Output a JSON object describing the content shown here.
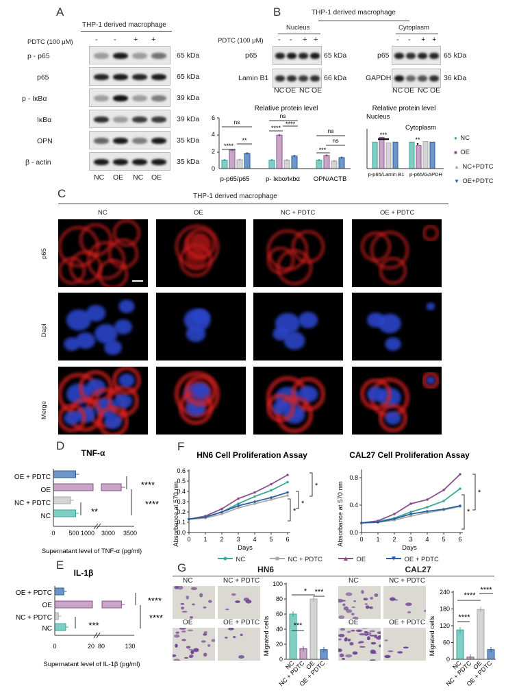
{
  "panelA": {
    "label": "A",
    "title": "THP-1 derived macrophage",
    "pdtc_label": "PDTC (100 μM)",
    "pdtc_values": [
      "-",
      "-",
      "+",
      "+"
    ],
    "rows": [
      {
        "name": "p - p65",
        "kda": "65 kDa",
        "int": [
          0.35,
          0.95,
          0.35,
          0.55
        ]
      },
      {
        "name": "p65",
        "kda": "65 kDa",
        "int": [
          0.9,
          0.95,
          0.9,
          0.95
        ]
      },
      {
        "name": "p - IκBα",
        "kda": "39 kDa",
        "int": [
          0.35,
          1.0,
          0.35,
          0.5
        ]
      },
      {
        "name": "IκBα",
        "kda": "39 kDa",
        "int": [
          0.85,
          0.35,
          0.8,
          0.8
        ]
      },
      {
        "name": "OPN",
        "kda": "35 kDa",
        "int": [
          0.6,
          0.95,
          0.5,
          0.95
        ]
      },
      {
        "name": "β - actin",
        "kda": "35 kDa",
        "int": [
          0.95,
          0.95,
          0.95,
          0.95
        ]
      }
    ],
    "lanes": [
      "NC",
      "OE",
      "NC",
      "OE"
    ]
  },
  "panelB": {
    "label": "B",
    "title": "THP-1 derived macrophage",
    "nucleus": "Nucleus",
    "cytoplasm": "Cytoplasm",
    "pdtc_label": "PDTC (100 μM)",
    "pdtc_values": [
      "-",
      "-",
      "+",
      "+"
    ],
    "nuc_rows": [
      {
        "name": "p65",
        "kda": "65 kDa"
      },
      {
        "name": "Lamin B1",
        "kda": "66 kDa"
      }
    ],
    "cyt_rows": [
      {
        "name": "p65",
        "kda": "65 kDa"
      },
      {
        "name": "GAPDH",
        "kda": "36 kDa"
      }
    ],
    "lanes": [
      "NC",
      "OE",
      "NC",
      "OE"
    ]
  },
  "chart_rel": {
    "type": "bar",
    "title": "Relative protein level",
    "categories": [
      "p-p65/p65",
      "p- Iκbα/Iκbα",
      "OPN/ACTB"
    ],
    "series": [
      {
        "name": "NC",
        "values": [
          1.0,
          1.0,
          1.0
        ]
      },
      {
        "name": "OE",
        "values": [
          2.2,
          3.95,
          1.55
        ]
      },
      {
        "name": "NC+PDTC",
        "values": [
          1.05,
          1.0,
          0.9
        ]
      },
      {
        "name": "OE+PDTC",
        "values": [
          1.8,
          1.5,
          1.3
        ]
      }
    ],
    "ylim": [
      0,
      6
    ],
    "yticks": [
      "0",
      "2",
      "4",
      "6"
    ],
    "annotations": [
      "ns",
      "****",
      "**",
      "ns",
      "****",
      "****",
      "ns",
      "***",
      "ns"
    ]
  },
  "chart_nuc": {
    "type": "bar",
    "title": "Relative protein level",
    "sub_nucleus": "Nucleus",
    "sub_cytoplasm": "Cytoplasm",
    "categories": [
      "p-p65/Lamin B1",
      "p-p65/GAPDH"
    ],
    "series": [
      {
        "name": "NC",
        "values": [
          1.0,
          1.0
        ]
      },
      {
        "name": "OE",
        "values": [
          1.18,
          0.87
        ]
      },
      {
        "name": "NC+PDTC",
        "values": [
          0.97,
          1.02
        ]
      },
      {
        "name": "OE+PDTC",
        "values": [
          1.0,
          1.0
        ]
      }
    ],
    "ylim": [
      0,
      1.5
    ],
    "annotations": [
      "***",
      "**"
    ]
  },
  "legend_top": [
    {
      "name": "NC",
      "color": "#3aa89a",
      "marker": "●"
    },
    {
      "name": "OE",
      "color": "#8a4e8c",
      "marker": "■"
    },
    {
      "name": "NC+PDTC",
      "color": "#a8a8a8",
      "marker": "▲"
    },
    {
      "name": "OE+PDTC",
      "color": "#2a5e9e",
      "marker": "▼"
    }
  ],
  "panelC": {
    "label": "C",
    "title": "THP-1 derived macrophage",
    "cols": [
      "NC",
      "OE",
      "NC + PDTC",
      "OE + PDTC"
    ],
    "rows": [
      "p65",
      "Dapi",
      "Merge"
    ]
  },
  "chart_tnf": {
    "label": "D",
    "type": "bar",
    "title": "TNF-α",
    "categories": [
      "OE + PDTC",
      "OE",
      "NC + PDTC",
      "NC"
    ],
    "values": [
      650,
      3350,
      500,
      650
    ],
    "xticks": [
      "0",
      "500",
      "1000",
      "3000",
      "3500"
    ],
    "xlabel": "Supernatant level of TNF-α (pg/ml)",
    "annotations": [
      "****",
      "****",
      "**"
    ]
  },
  "chart_il": {
    "label": "E",
    "type": "bar",
    "title": "IL-1β",
    "categories": [
      "OE + PDTC",
      "OE",
      "NC + PDTC",
      "NC"
    ],
    "values": [
      5,
      115,
      2,
      6
    ],
    "xticks": [
      "0",
      "20",
      "80",
      "130"
    ],
    "xlabel": "Supernatant level of IL-1β (pg/ml)",
    "annotations": [
      "****",
      "****",
      "***"
    ]
  },
  "chart_hn6": {
    "label": "F",
    "type": "line",
    "title": "HN6 Cell Proliferation Assay",
    "x": [
      0,
      1,
      2,
      3,
      4,
      5,
      6
    ],
    "series": [
      {
        "name": "NC",
        "values": [
          0.13,
          0.15,
          0.2,
          0.28,
          0.35,
          0.41,
          0.49
        ]
      },
      {
        "name": "NC + PDTC",
        "values": [
          0.13,
          0.14,
          0.18,
          0.24,
          0.28,
          0.32,
          0.36
        ]
      },
      {
        "name": "OE",
        "values": [
          0.13,
          0.16,
          0.23,
          0.33,
          0.39,
          0.47,
          0.56
        ]
      },
      {
        "name": "OE + PDTC",
        "values": [
          0.13,
          0.15,
          0.2,
          0.26,
          0.3,
          0.34,
          0.39
        ]
      }
    ],
    "ylim": [
      0,
      0.6
    ],
    "yticks": [
      "0.0",
      "0.1",
      "0.2",
      "0.3",
      "0.4",
      "0.5",
      "0.6"
    ],
    "ylabel": "Absorbance at 570 nm",
    "xlabel": "Days",
    "annotations": [
      "*",
      "*",
      "*"
    ]
  },
  "chart_cal27": {
    "type": "line",
    "title": "CAL27 Cell Proliferation Assay",
    "x": [
      0,
      1,
      2,
      3,
      4,
      5,
      6
    ],
    "series": [
      {
        "name": "NC",
        "values": [
          0.14,
          0.16,
          0.21,
          0.3,
          0.37,
          0.46,
          0.64
        ]
      },
      {
        "name": "NC + PDTC",
        "values": [
          0.14,
          0.15,
          0.18,
          0.24,
          0.29,
          0.33,
          0.38
        ]
      },
      {
        "name": "OE",
        "values": [
          0.14,
          0.17,
          0.27,
          0.42,
          0.48,
          0.62,
          0.85
        ]
      },
      {
        "name": "OE + PDTC",
        "values": [
          0.14,
          0.15,
          0.2,
          0.27,
          0.31,
          0.34,
          0.39
        ]
      }
    ],
    "ylim": [
      0,
      0.9
    ],
    "yticks": [
      "0.0",
      "0.4",
      "0.8"
    ],
    "ylabel": "Absorbance at 570 nm",
    "xlabel": "Days",
    "annotations": [
      "*",
      "*"
    ]
  },
  "legend_f": [
    {
      "name": "NC",
      "color": "#3aa89a"
    },
    {
      "name": "NC + PDTC",
      "color": "#a8a8a8"
    },
    {
      "name": "OE",
      "color": "#8a4e8c"
    },
    {
      "name": "OE + PDTC",
      "color": "#2a5e9e"
    }
  ],
  "panelG": {
    "label": "G",
    "hn6_title": "HN6",
    "cal27_title": "CAL27",
    "img_labels": [
      "NC",
      "NC + PDTC",
      "OE",
      "OE + PDTC"
    ]
  },
  "chart_g_hn6": {
    "type": "bar",
    "categories": [
      "NC",
      "NC + PDTC",
      "OE",
      "OE + PDTC"
    ],
    "values": [
      60,
      14,
      80,
      13
    ],
    "ylim": [
      0,
      100
    ],
    "yticks": [
      "0",
      "20",
      "40",
      "60",
      "80",
      "100"
    ],
    "ylabel": "Migrated cells",
    "annotations": [
      "*",
      "***",
      "***"
    ]
  },
  "chart_g_cal27": {
    "type": "bar",
    "categories": [
      "NC",
      "NC + PDTC",
      "OE",
      "OE + PDTC"
    ],
    "values": [
      105,
      8,
      178,
      35
    ],
    "ylim": [
      0,
      240
    ],
    "yticks": [
      "0",
      "60",
      "120",
      "180",
      "240"
    ],
    "ylabel": "Migrated cells",
    "annotations": [
      "****",
      "****",
      "****"
    ]
  },
  "colors": {
    "nc": "#3aa89a",
    "oe": "#8a4e8c",
    "ncp": "#a8a8a8",
    "oep": "#2a5e9e",
    "nc_fill": "#7fcdc3",
    "oe_fill": "#c9a6c7",
    "ncp_fill": "#d4d4d4",
    "oep_fill": "#6e95c7"
  }
}
